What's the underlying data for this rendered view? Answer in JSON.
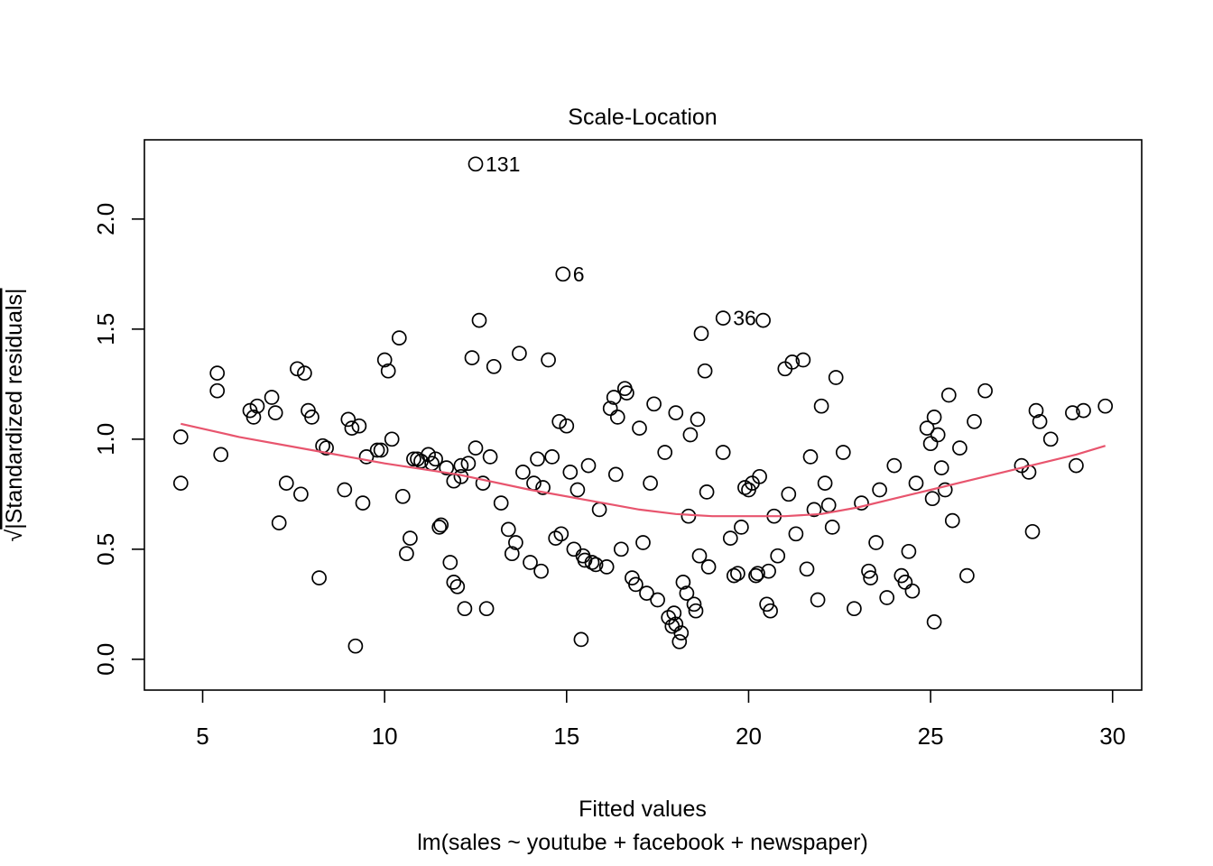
{
  "chart_data": {
    "type": "scatter",
    "title": "Scale-Location",
    "xlabel": "Fitted values",
    "xlabel2": "lm(sales ~ youtube + facebook + newspaper)",
    "ylabel": "√|Standardized residuals|",
    "ylabel_radical": "√",
    "ylabel_rest": "|Standardized residuals|",
    "x_ticks": [
      5,
      10,
      15,
      20,
      25,
      30
    ],
    "y_ticks": [
      0.0,
      0.5,
      1.0,
      1.5,
      2.0
    ],
    "x_range": [
      3.4,
      30.8
    ],
    "y_range": [
      -0.14,
      2.36
    ],
    "grid": false,
    "point_color": "#000000",
    "smooth_color": "#e8556e",
    "labeled_points": [
      {
        "label": "131",
        "x": 12.5,
        "y": 2.25
      },
      {
        "label": "6",
        "x": 14.9,
        "y": 1.75
      },
      {
        "label": "36",
        "x": 19.3,
        "y": 1.55
      }
    ],
    "smooth_line": [
      [
        4.4,
        1.07
      ],
      [
        6,
        1.01
      ],
      [
        8,
        0.95
      ],
      [
        10,
        0.89
      ],
      [
        12,
        0.84
      ],
      [
        14,
        0.77
      ],
      [
        16,
        0.71
      ],
      [
        17,
        0.68
      ],
      [
        18,
        0.66
      ],
      [
        19,
        0.65
      ],
      [
        20,
        0.65
      ],
      [
        21,
        0.65
      ],
      [
        22,
        0.66
      ],
      [
        23,
        0.69
      ],
      [
        24,
        0.73
      ],
      [
        25,
        0.77
      ],
      [
        26,
        0.81
      ],
      [
        27,
        0.85
      ],
      [
        28,
        0.89
      ],
      [
        29,
        0.93
      ],
      [
        29.8,
        0.97
      ]
    ],
    "points": [
      [
        4.4,
        1.01
      ],
      [
        4.4,
        0.8
      ],
      [
        5.4,
        1.3
      ],
      [
        5.4,
        1.22
      ],
      [
        5.5,
        0.93
      ],
      [
        6.3,
        1.13
      ],
      [
        6.4,
        1.1
      ],
      [
        6.5,
        1.15
      ],
      [
        6.9,
        1.19
      ],
      [
        7.0,
        1.12
      ],
      [
        7.1,
        0.62
      ],
      [
        7.3,
        0.8
      ],
      [
        7.6,
        1.32
      ],
      [
        7.7,
        0.75
      ],
      [
        7.8,
        1.3
      ],
      [
        7.9,
        1.13
      ],
      [
        8.0,
        1.1
      ],
      [
        8.2,
        0.37
      ],
      [
        8.3,
        0.97
      ],
      [
        8.4,
        0.96
      ],
      [
        8.9,
        0.77
      ],
      [
        9.0,
        1.09
      ],
      [
        9.1,
        1.05
      ],
      [
        9.2,
        0.06
      ],
      [
        9.3,
        1.06
      ],
      [
        9.4,
        0.71
      ],
      [
        9.5,
        0.92
      ],
      [
        9.8,
        0.95
      ],
      [
        9.9,
        0.95
      ],
      [
        10.0,
        1.36
      ],
      [
        10.1,
        1.31
      ],
      [
        10.2,
        1.0
      ],
      [
        10.4,
        1.46
      ],
      [
        10.5,
        0.74
      ],
      [
        10.6,
        0.48
      ],
      [
        10.7,
        0.55
      ],
      [
        10.8,
        0.91
      ],
      [
        10.9,
        0.91
      ],
      [
        11.0,
        0.9
      ],
      [
        11.2,
        0.93
      ],
      [
        11.3,
        0.89
      ],
      [
        11.4,
        0.91
      ],
      [
        11.5,
        0.6
      ],
      [
        11.55,
        0.61
      ],
      [
        11.7,
        0.87
      ],
      [
        11.8,
        0.44
      ],
      [
        11.9,
        0.81
      ],
      [
        11.9,
        0.35
      ],
      [
        12.0,
        0.33
      ],
      [
        12.1,
        0.88
      ],
      [
        12.1,
        0.83
      ],
      [
        12.2,
        0.23
      ],
      [
        12.3,
        0.89
      ],
      [
        12.4,
        1.37
      ],
      [
        12.5,
        0.96
      ],
      [
        12.6,
        1.54
      ],
      [
        12.7,
        0.8
      ],
      [
        12.8,
        0.23
      ],
      [
        12.9,
        0.92
      ],
      [
        13.0,
        1.33
      ],
      [
        13.2,
        0.71
      ],
      [
        13.4,
        0.59
      ],
      [
        13.5,
        0.48
      ],
      [
        13.6,
        0.53
      ],
      [
        13.7,
        1.39
      ],
      [
        13.8,
        0.85
      ],
      [
        14.0,
        0.44
      ],
      [
        14.1,
        0.8
      ],
      [
        14.2,
        0.91
      ],
      [
        14.3,
        0.4
      ],
      [
        14.35,
        0.78
      ],
      [
        14.5,
        1.36
      ],
      [
        14.6,
        0.92
      ],
      [
        14.7,
        0.55
      ],
      [
        14.8,
        1.08
      ],
      [
        14.85,
        0.57
      ],
      [
        15.0,
        1.06
      ],
      [
        15.1,
        0.85
      ],
      [
        15.2,
        0.5
      ],
      [
        15.3,
        0.77
      ],
      [
        15.4,
        0.09
      ],
      [
        15.45,
        0.47
      ],
      [
        15.5,
        0.45
      ],
      [
        15.6,
        0.88
      ],
      [
        15.7,
        0.44
      ],
      [
        15.8,
        0.43
      ],
      [
        15.9,
        0.68
      ],
      [
        16.1,
        0.42
      ],
      [
        16.2,
        1.14
      ],
      [
        16.3,
        1.19
      ],
      [
        16.35,
        0.84
      ],
      [
        16.4,
        1.1
      ],
      [
        16.5,
        0.5
      ],
      [
        16.6,
        1.23
      ],
      [
        16.65,
        1.21
      ],
      [
        16.8,
        0.37
      ],
      [
        16.9,
        0.34
      ],
      [
        17.0,
        1.05
      ],
      [
        17.1,
        0.53
      ],
      [
        17.2,
        0.3
      ],
      [
        17.3,
        0.8
      ],
      [
        17.4,
        1.16
      ],
      [
        17.5,
        0.27
      ],
      [
        17.7,
        0.94
      ],
      [
        17.8,
        0.19
      ],
      [
        17.9,
        0.15
      ],
      [
        17.95,
        0.21
      ],
      [
        18.0,
        1.12
      ],
      [
        18.0,
        0.16
      ],
      [
        18.1,
        0.08
      ],
      [
        18.15,
        0.12
      ],
      [
        18.2,
        0.35
      ],
      [
        18.3,
        0.3
      ],
      [
        18.35,
        0.65
      ],
      [
        18.4,
        1.02
      ],
      [
        18.5,
        0.25
      ],
      [
        18.55,
        0.22
      ],
      [
        18.6,
        1.09
      ],
      [
        18.65,
        0.47
      ],
      [
        18.7,
        1.48
      ],
      [
        18.8,
        1.31
      ],
      [
        18.85,
        0.76
      ],
      [
        18.9,
        0.42
      ],
      [
        19.3,
        0.94
      ],
      [
        19.5,
        0.55
      ],
      [
        19.6,
        0.38
      ],
      [
        19.7,
        0.39
      ],
      [
        19.8,
        0.6
      ],
      [
        19.9,
        0.78
      ],
      [
        20.0,
        0.77
      ],
      [
        20.1,
        0.8
      ],
      [
        20.2,
        0.38
      ],
      [
        20.25,
        0.39
      ],
      [
        20.3,
        0.83
      ],
      [
        20.4,
        1.54
      ],
      [
        20.5,
        0.25
      ],
      [
        20.55,
        0.4
      ],
      [
        20.6,
        0.22
      ],
      [
        20.7,
        0.65
      ],
      [
        20.8,
        0.47
      ],
      [
        21.0,
        1.32
      ],
      [
        21.1,
        0.75
      ],
      [
        21.2,
        1.35
      ],
      [
        21.3,
        0.57
      ],
      [
        21.5,
        1.36
      ],
      [
        21.6,
        0.41
      ],
      [
        21.7,
        0.92
      ],
      [
        21.8,
        0.68
      ],
      [
        21.9,
        0.27
      ],
      [
        22.0,
        1.15
      ],
      [
        22.1,
        0.8
      ],
      [
        22.2,
        0.7
      ],
      [
        22.3,
        0.6
      ],
      [
        22.4,
        1.28
      ],
      [
        22.6,
        0.94
      ],
      [
        22.9,
        0.23
      ],
      [
        23.1,
        0.71
      ],
      [
        23.3,
        0.4
      ],
      [
        23.35,
        0.37
      ],
      [
        23.5,
        0.53
      ],
      [
        23.6,
        0.77
      ],
      [
        23.8,
        0.28
      ],
      [
        24.0,
        0.88
      ],
      [
        24.2,
        0.38
      ],
      [
        24.3,
        0.35
      ],
      [
        24.4,
        0.49
      ],
      [
        24.5,
        0.31
      ],
      [
        24.6,
        0.8
      ],
      [
        24.9,
        1.05
      ],
      [
        25.0,
        0.98
      ],
      [
        25.05,
        0.73
      ],
      [
        25.1,
        1.1
      ],
      [
        25.1,
        0.17
      ],
      [
        25.2,
        1.02
      ],
      [
        25.3,
        0.87
      ],
      [
        25.4,
        0.77
      ],
      [
        25.5,
        1.2
      ],
      [
        25.6,
        0.63
      ],
      [
        25.8,
        0.96
      ],
      [
        26.0,
        0.38
      ],
      [
        26.2,
        1.08
      ],
      [
        26.5,
        1.22
      ],
      [
        27.5,
        0.88
      ],
      [
        27.7,
        0.85
      ],
      [
        27.8,
        0.58
      ],
      [
        27.9,
        1.13
      ],
      [
        28.0,
        1.08
      ],
      [
        28.3,
        1.0
      ],
      [
        28.9,
        1.12
      ],
      [
        29.0,
        0.88
      ],
      [
        29.2,
        1.13
      ],
      [
        29.8,
        1.15
      ]
    ]
  }
}
